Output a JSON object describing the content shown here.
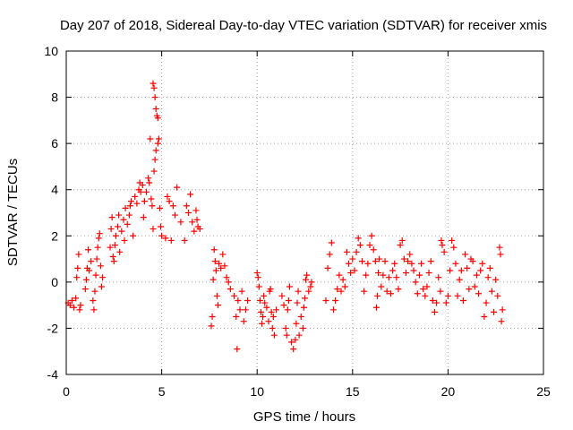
{
  "chart_data": {
    "type": "scatter",
    "title": "Day 207 of 2018, Sidereal Day-to-day VTEC variation (SDTVAR) for receiver xmis",
    "xlabel": "GPS time / hours",
    "ylabel": "SDTVAR / TECUs",
    "xlim": [
      0,
      25
    ],
    "ylim": [
      -4,
      10
    ],
    "xticks": [
      0,
      5,
      10,
      15,
      20,
      25
    ],
    "yticks": [
      -4,
      -2,
      0,
      2,
      4,
      6,
      8,
      10
    ],
    "grid": true,
    "marker": "+",
    "marker_color": "#ff0000",
    "series": [
      {
        "name": "SDTVAR",
        "points": [
          [
            0.1,
            -0.9
          ],
          [
            0.2,
            -1.0
          ],
          [
            0.3,
            -0.8
          ],
          [
            0.4,
            -1.1
          ],
          [
            0.5,
            -0.7
          ],
          [
            0.55,
            0.2
          ],
          [
            0.6,
            0.6
          ],
          [
            0.65,
            1.2
          ],
          [
            0.7,
            -1.2
          ],
          [
            0.75,
            -1.0
          ],
          [
            1.0,
            -0.3
          ],
          [
            1.05,
            0.1
          ],
          [
            1.1,
            0.6
          ],
          [
            1.15,
            1.4
          ],
          [
            1.2,
            0.5
          ],
          [
            1.3,
            0.9
          ],
          [
            1.4,
            -0.8
          ],
          [
            1.45,
            -1.2
          ],
          [
            1.5,
            -0.4
          ],
          [
            1.55,
            0.3
          ],
          [
            1.6,
            1.0
          ],
          [
            1.65,
            1.5
          ],
          [
            1.7,
            1.9
          ],
          [
            1.75,
            2.1
          ],
          [
            1.8,
            0.7
          ],
          [
            1.85,
            -0.2
          ],
          [
            1.9,
            0.2
          ],
          [
            2.3,
            1.5
          ],
          [
            2.35,
            2.3
          ],
          [
            2.4,
            2.8
          ],
          [
            2.45,
            1.1
          ],
          [
            2.5,
            0.9
          ],
          [
            2.55,
            1.6
          ],
          [
            2.6,
            2.0
          ],
          [
            2.7,
            2.4
          ],
          [
            2.75,
            2.9
          ],
          [
            2.8,
            1.3
          ],
          [
            2.9,
            2.2
          ],
          [
            3.0,
            2.7
          ],
          [
            3.05,
            1.8
          ],
          [
            3.1,
            3.2
          ],
          [
            3.2,
            2.5
          ],
          [
            3.3,
            2.9
          ],
          [
            3.35,
            3.3
          ],
          [
            3.4,
            3.5
          ],
          [
            3.5,
            2.0
          ],
          [
            3.6,
            3.7
          ],
          [
            3.7,
            3.4
          ],
          [
            3.8,
            4.0
          ],
          [
            3.85,
            4.3
          ],
          [
            3.9,
            3.9
          ],
          [
            4.0,
            4.2
          ],
          [
            4.05,
            2.8
          ],
          [
            4.1,
            3.5
          ],
          [
            4.2,
            3.9
          ],
          [
            4.3,
            4.5
          ],
          [
            4.35,
            4.3
          ],
          [
            4.4,
            6.2
          ],
          [
            4.45,
            3.6
          ],
          [
            4.5,
            3.3
          ],
          [
            4.55,
            2.3
          ],
          [
            4.6,
            4.8
          ],
          [
            4.65,
            5.3
          ],
          [
            4.7,
            5.7
          ],
          [
            4.55,
            8.6
          ],
          [
            4.6,
            8.4
          ],
          [
            4.65,
            8.0
          ],
          [
            4.7,
            7.5
          ],
          [
            4.75,
            7.2
          ],
          [
            4.8,
            7.1
          ],
          [
            4.85,
            6.2
          ],
          [
            4.8,
            6.0
          ],
          [
            4.9,
            3.2
          ],
          [
            4.95,
            2.4
          ],
          [
            5.0,
            2.0
          ],
          [
            5.2,
            1.9
          ],
          [
            5.3,
            3.7
          ],
          [
            5.4,
            3.5
          ],
          [
            5.5,
            1.8
          ],
          [
            5.6,
            3.3
          ],
          [
            5.7,
            2.9
          ],
          [
            5.8,
            4.1
          ],
          [
            6.0,
            2.6
          ],
          [
            6.2,
            1.8
          ],
          [
            6.3,
            3.3
          ],
          [
            6.4,
            3.0
          ],
          [
            6.5,
            3.8
          ],
          [
            6.6,
            2.6
          ],
          [
            6.7,
            2.2
          ],
          [
            6.8,
            3.1
          ],
          [
            6.85,
            2.7
          ],
          [
            6.9,
            2.4
          ],
          [
            7.0,
            2.3
          ],
          [
            7.6,
            -1.9
          ],
          [
            7.65,
            -1.5
          ],
          [
            7.7,
            0.1
          ],
          [
            7.75,
            1.4
          ],
          [
            7.8,
            0.9
          ],
          [
            7.85,
            0.5
          ],
          [
            7.9,
            -0.6
          ],
          [
            7.95,
            -1.0
          ],
          [
            8.0,
            0.8
          ],
          [
            8.1,
            0.6
          ],
          [
            8.2,
            1.2
          ],
          [
            8.3,
            0.7
          ],
          [
            8.4,
            0.2
          ],
          [
            8.5,
            0.0
          ],
          [
            8.6,
            -0.3
          ],
          [
            8.8,
            -0.6
          ],
          [
            8.9,
            -1.5
          ],
          [
            8.95,
            -2.9
          ],
          [
            9.0,
            -0.8
          ],
          [
            9.1,
            -1.2
          ],
          [
            9.2,
            -0.4
          ],
          [
            9.3,
            -1.7
          ],
          [
            9.4,
            -1.2
          ],
          [
            9.5,
            -0.8
          ],
          [
            10.0,
            0.4
          ],
          [
            10.05,
            0.2
          ],
          [
            10.1,
            -0.2
          ],
          [
            10.15,
            -0.8
          ],
          [
            10.2,
            -1.3
          ],
          [
            10.25,
            -1.8
          ],
          [
            10.3,
            -1.5
          ],
          [
            10.35,
            -0.6
          ],
          [
            10.4,
            -0.9
          ],
          [
            10.5,
            -1.1
          ],
          [
            10.6,
            -1.7
          ],
          [
            10.65,
            -0.4
          ],
          [
            10.7,
            -0.3
          ],
          [
            10.75,
            -1.3
          ],
          [
            10.8,
            -2.0
          ],
          [
            10.85,
            -1.5
          ],
          [
            10.9,
            -2.3
          ],
          [
            11.0,
            -1.2
          ],
          [
            11.3,
            -0.6
          ],
          [
            11.4,
            -1.0
          ],
          [
            11.5,
            -2.0
          ],
          [
            11.55,
            -2.3
          ],
          [
            11.6,
            -1.2
          ],
          [
            11.65,
            -0.8
          ],
          [
            11.7,
            -0.2
          ],
          [
            11.8,
            -2.6
          ],
          [
            11.9,
            -2.9
          ],
          [
            12.0,
            -2.5
          ],
          [
            12.05,
            -1.8
          ],
          [
            12.1,
            -0.9
          ],
          [
            12.15,
            -0.4
          ],
          [
            12.2,
            -2.3
          ],
          [
            12.3,
            -1.5
          ],
          [
            12.4,
            -2.0
          ],
          [
            12.45,
            -1.1
          ],
          [
            12.5,
            -0.7
          ],
          [
            12.55,
            0.1
          ],
          [
            12.6,
            0.3
          ],
          [
            12.7,
            -0.4
          ],
          [
            12.8,
            -0.2
          ],
          [
            12.85,
            0.0
          ],
          [
            13.6,
            -0.8
          ],
          [
            13.7,
            0.6
          ],
          [
            13.8,
            1.2
          ],
          [
            13.9,
            1.7
          ],
          [
            14.0,
            -1.2
          ],
          [
            14.1,
            -0.8
          ],
          [
            14.2,
            -0.3
          ],
          [
            14.3,
            0.3
          ],
          [
            14.4,
            -0.4
          ],
          [
            14.5,
            0.1
          ],
          [
            14.6,
            -0.2
          ],
          [
            14.7,
            1.3
          ],
          [
            14.8,
            0.8
          ],
          [
            14.9,
            0.4
          ],
          [
            15.0,
            1.0
          ],
          [
            15.1,
            0.5
          ],
          [
            15.2,
            1.3
          ],
          [
            15.3,
            1.9
          ],
          [
            15.4,
            1.6
          ],
          [
            15.5,
            0.9
          ],
          [
            15.6,
            -0.4
          ],
          [
            15.7,
            0.3
          ],
          [
            15.8,
            0.8
          ],
          [
            15.9,
            1.6
          ],
          [
            16.0,
            2.0
          ],
          [
            16.1,
            1.4
          ],
          [
            16.2,
            0.9
          ],
          [
            16.25,
            -1.1
          ],
          [
            16.3,
            -0.6
          ],
          [
            16.35,
            0.4
          ],
          [
            16.4,
            1.0
          ],
          [
            16.5,
            -0.2
          ],
          [
            16.6,
            0.3
          ],
          [
            16.7,
            0.9
          ],
          [
            16.8,
            -0.4
          ],
          [
            16.9,
            0.2
          ],
          [
            17.0,
            -0.5
          ],
          [
            17.1,
            0.5
          ],
          [
            17.2,
            0.8
          ],
          [
            17.3,
            0.2
          ],
          [
            17.4,
            -0.3
          ],
          [
            17.5,
            1.6
          ],
          [
            17.6,
            1.8
          ],
          [
            17.7,
            1.0
          ],
          [
            17.8,
            0.4
          ],
          [
            17.9,
            0.9
          ],
          [
            18.0,
            1.2
          ],
          [
            18.1,
            0.8
          ],
          [
            18.2,
            0.5
          ],
          [
            18.3,
            0.0
          ],
          [
            18.4,
            -0.5
          ],
          [
            18.5,
            0.3
          ],
          [
            18.6,
            0.8
          ],
          [
            18.7,
            -0.3
          ],
          [
            18.8,
            -0.6
          ],
          [
            18.9,
            -0.2
          ],
          [
            19.0,
            0.4
          ],
          [
            19.1,
            0.9
          ],
          [
            19.2,
            -0.8
          ],
          [
            19.3,
            -1.3
          ],
          [
            19.4,
            -0.9
          ],
          [
            19.5,
            0.2
          ],
          [
            19.6,
            -0.4
          ],
          [
            19.65,
            1.8
          ],
          [
            19.7,
            1.6
          ],
          [
            19.8,
            1.3
          ],
          [
            19.9,
            -0.9
          ],
          [
            20.0,
            -0.6
          ],
          [
            20.1,
            0.5
          ],
          [
            20.2,
            1.8
          ],
          [
            20.3,
            1.5
          ],
          [
            20.4,
            0.8
          ],
          [
            20.5,
            -0.6
          ],
          [
            20.6,
            0.1
          ],
          [
            20.7,
            0.5
          ],
          [
            20.8,
            -0.8
          ],
          [
            20.9,
            1.2
          ],
          [
            21.0,
            0.6
          ],
          [
            21.1,
            -0.3
          ],
          [
            21.2,
            1.0
          ],
          [
            21.3,
            0.9
          ],
          [
            21.4,
            -0.2
          ],
          [
            21.5,
            0.3
          ],
          [
            21.6,
            -0.5
          ],
          [
            21.7,
            0.5
          ],
          [
            21.8,
            0.8
          ],
          [
            21.9,
            -1.5
          ],
          [
            22.0,
            -0.9
          ],
          [
            22.1,
            0.2
          ],
          [
            22.2,
            0.6
          ],
          [
            22.3,
            -0.4
          ],
          [
            22.4,
            -1.3
          ],
          [
            22.5,
            0.1
          ],
          [
            22.6,
            -0.6
          ],
          [
            22.7,
            1.5
          ],
          [
            22.75,
            1.2
          ],
          [
            22.8,
            -1.7
          ],
          [
            22.85,
            -1.2
          ]
        ]
      }
    ]
  }
}
